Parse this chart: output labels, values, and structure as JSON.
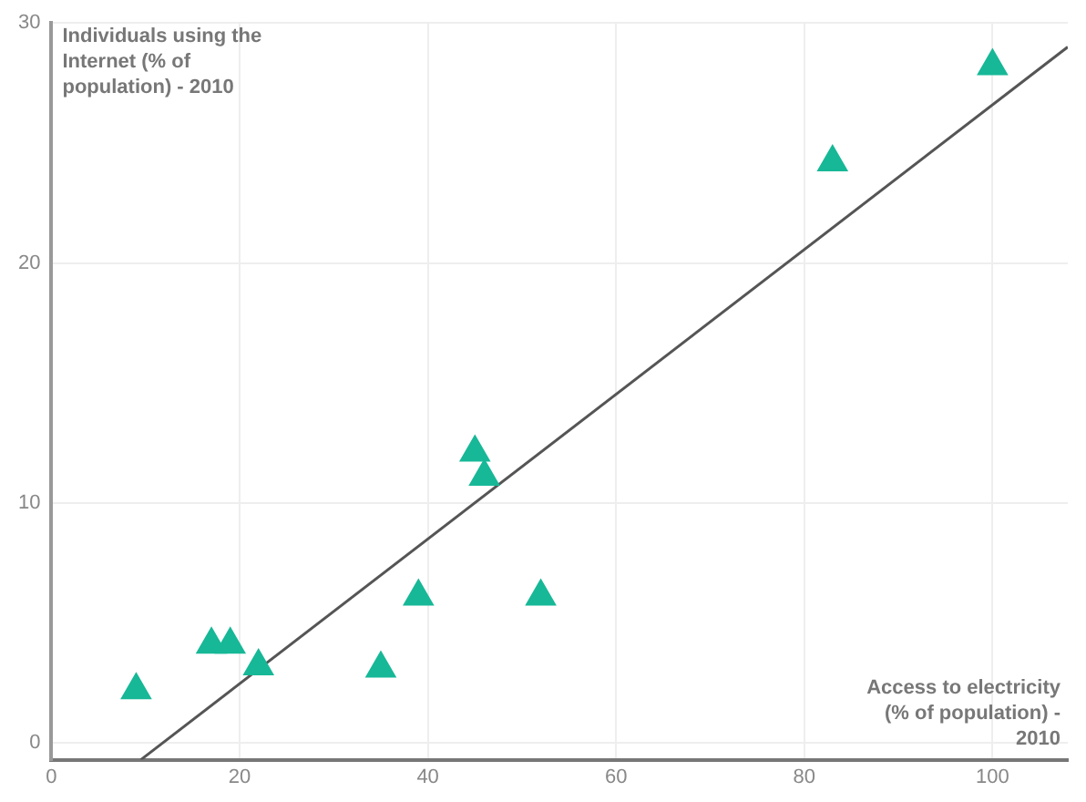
{
  "chart_data": {
    "type": "scatter",
    "xlabel": "Access to electricity (% of population) - 2010",
    "ylabel": "Individuals using the Internet (% of population) - 2010",
    "series": [
      {
        "marker": "triangle",
        "color": "#17b897",
        "x": [
          9,
          17,
          19,
          22,
          35,
          39,
          45,
          46,
          52,
          83,
          100
        ],
        "values": [
          2.2,
          4.1,
          4.1,
          3.2,
          3.1,
          6.1,
          12.1,
          11.1,
          6.1,
          24.2,
          28.2
        ]
      },
      {
        "type": "line",
        "marker": "none",
        "color": "#555555",
        "x": [
          9.5,
          108
        ],
        "values": [
          -0.7,
          29.0
        ]
      }
    ],
    "xlim": [
      0,
      108
    ],
    "ylim": [
      -0.7,
      30
    ],
    "xticks": [
      0,
      20,
      40,
      60,
      80,
      100
    ],
    "yticks": [
      0,
      10,
      20,
      30
    ],
    "grid": true,
    "legend": false
  }
}
